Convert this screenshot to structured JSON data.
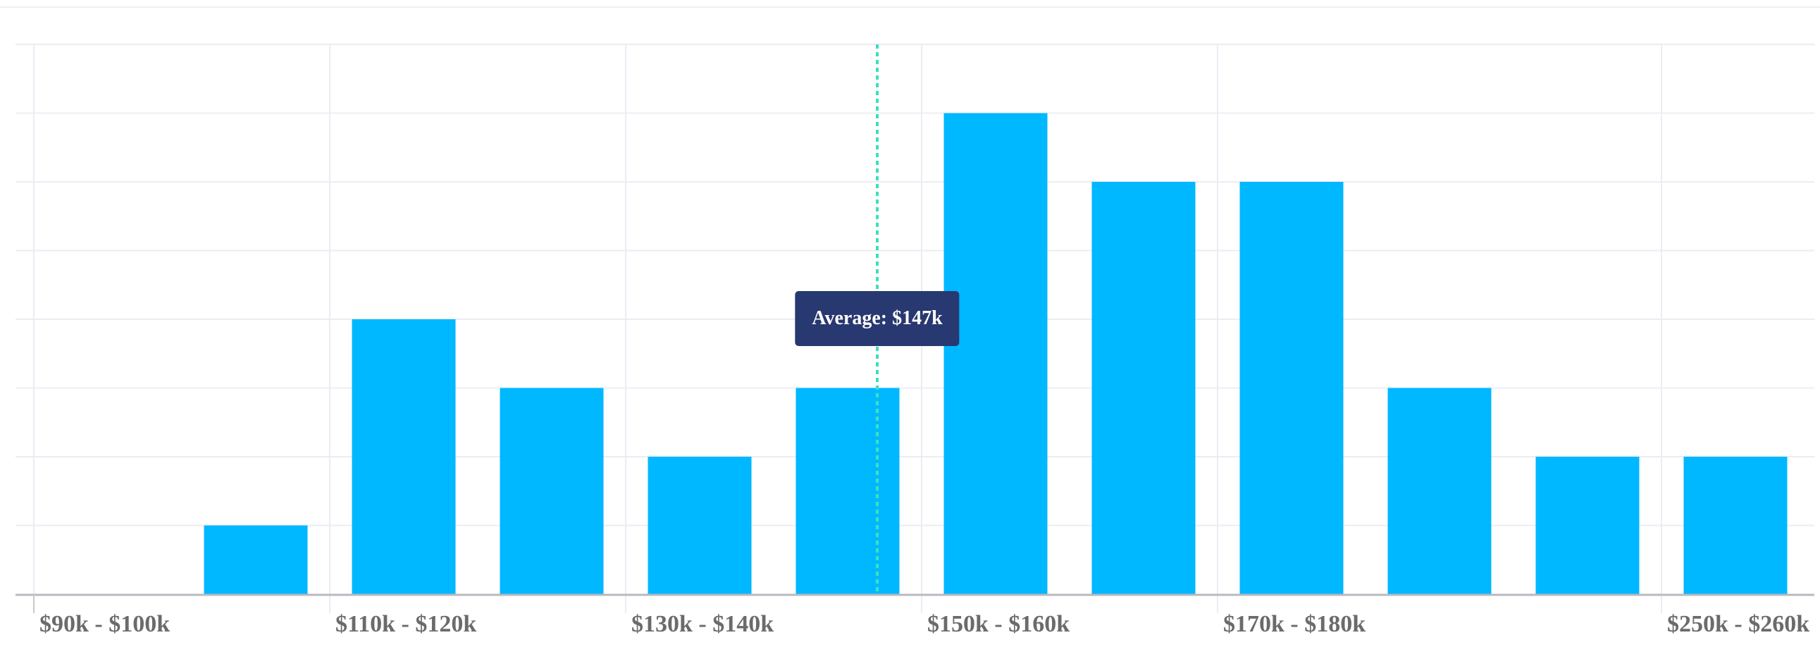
{
  "chart_data": {
    "type": "bar",
    "title": "",
    "xlabel": "",
    "ylabel": "",
    "ylim": [
      0,
      8
    ],
    "grid": true,
    "band_count": 12,
    "values": [
      0,
      1,
      4,
      3,
      2,
      3,
      7,
      6,
      6,
      3,
      2,
      2
    ],
    "tick_labels": [
      {
        "index": 0,
        "label": "$90k - $100k"
      },
      {
        "index": 2,
        "label": "$110k - $120k"
      },
      {
        "index": 4,
        "label": "$130k - $140k"
      },
      {
        "index": 6,
        "label": "$150k - $160k"
      },
      {
        "index": 8,
        "label": "$170k - $180k"
      },
      {
        "index": 11,
        "label": "$250k - $260k"
      }
    ],
    "average": {
      "value_k": 147,
      "band_position": 5.7,
      "label": "Average: $147k"
    },
    "colors": {
      "bar": "#00b8ff",
      "average_line": "#3ddfc0",
      "tooltip": "#283870",
      "grid": "#ececf4",
      "axis": "#b8b8c0"
    }
  }
}
